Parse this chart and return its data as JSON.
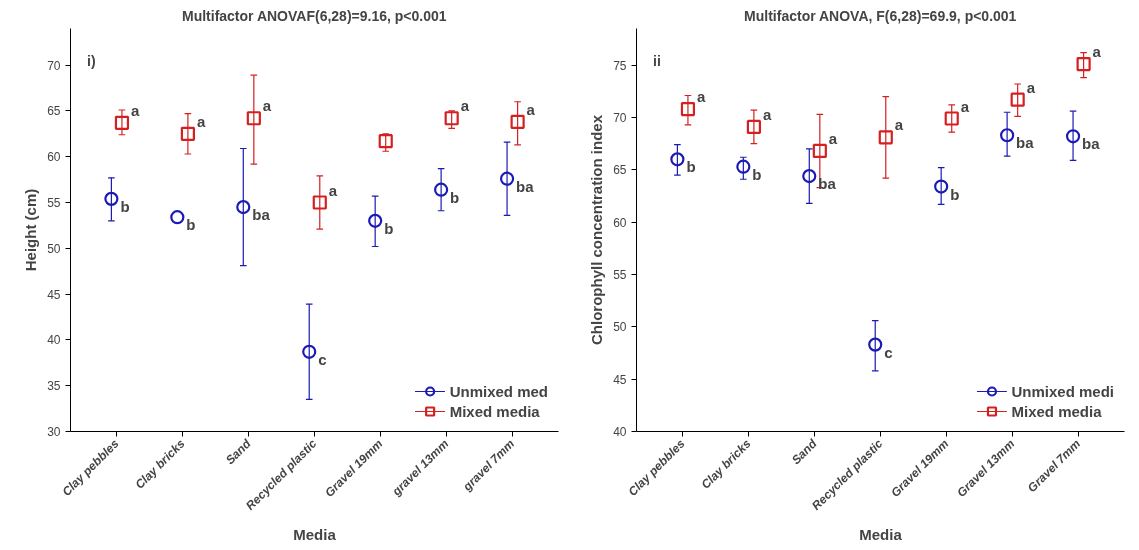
{
  "chart_data": [
    {
      "type": "scatter",
      "title": "Multifactor ANOVAF(6,28)=9.16, p<0.001",
      "xlabel": "Media",
      "ylabel": "Height (cm)",
      "categories": [
        "Clay pebbles",
        "Clay bricks",
        "Sand",
        "Recycled plastic",
        "Gravel 19mm",
        "gravel 13mm",
        "gravel 7mm"
      ],
      "series": [
        {
          "name": "Unmixed med",
          "color": "#1a1ab4",
          "marker": "circle",
          "values": [
            55.4,
            53.4,
            54.5,
            38.7,
            53.0,
            56.4,
            57.6
          ],
          "errors": [
            [
              53.0,
              57.7
            ],
            null,
            [
              48.1,
              60.9
            ],
            [
              33.5,
              43.9
            ],
            [
              50.2,
              55.7
            ],
            [
              54.1,
              58.7
            ],
            [
              53.6,
              61.6
            ]
          ]
        },
        {
          "name": "Mixed media",
          "color": "#d42020",
          "marker": "square",
          "values": [
            63.7,
            62.5,
            64.2,
            55.0,
            61.7,
            64.2,
            63.8
          ],
          "errors": [
            [
              62.4,
              65.1
            ],
            [
              60.3,
              64.7
            ],
            [
              59.2,
              68.9
            ],
            [
              52.1,
              57.9
            ],
            [
              60.6,
              62.5
            ],
            [
              63.1,
              65.0
            ],
            [
              61.3,
              66.0
            ]
          ]
        }
      ],
      "ylim": [
        30,
        74
      ],
      "yticks": [
        30,
        35,
        40,
        45,
        50,
        55,
        60,
        65,
        70
      ],
      "grid": false,
      "legend": "bottom right",
      "annotations": [
        "i)",
        {
          "text": "b",
          "x": "Clay pebbles",
          "y": 55.4
        },
        {
          "text": "b",
          "x": "Clay bricks",
          "y": 53.4
        },
        {
          "text": "ba",
          "x": "Sand",
          "y": 54.5
        },
        {
          "text": "c",
          "x": "Recycled plastic",
          "y": 38.7
        },
        {
          "text": "b",
          "x": "Gravel 19mm",
          "y": 53.0
        },
        {
          "text": "b",
          "x": "gravel 13mm",
          "y": 56.4
        },
        {
          "text": "ba",
          "x": "gravel 7mm",
          "y": 57.6
        },
        {
          "text": "a",
          "x": "Clay pebbles",
          "y": 63.7
        },
        {
          "text": "a",
          "x": "Clay bricks",
          "y": 62.5
        },
        {
          "text": "a",
          "x": "Sand",
          "y": 64.2
        },
        {
          "text": "a",
          "x": "Recycled plastic",
          "y": 55.0
        },
        {
          "text": "a",
          "x": "gravel 13mm",
          "y": 64.2
        },
        {
          "text": "a",
          "x": "gravel 7mm",
          "y": 63.8
        }
      ]
    },
    {
      "type": "scatter",
      "title": "Multifactor ANOVA, F(6,28)=69.9, p<0.001",
      "xlabel": "Media",
      "ylabel": "Chlorophyll concentration index",
      "categories": [
        "Clay pebbles",
        "Clay bricks",
        "Sand",
        "Recycled plastic",
        "Gravel 19mm",
        "Gravel 13mm",
        "Gravel 7mm"
      ],
      "series": [
        {
          "name": "Unmixed medi",
          "color": "#1a1ab4",
          "marker": "circle",
          "values": [
            66.0,
            65.3,
            64.4,
            48.3,
            63.4,
            68.3,
            68.2
          ],
          "errors": [
            [
              64.5,
              67.4
            ],
            [
              64.1,
              66.2
            ],
            [
              61.8,
              67.0
            ],
            [
              45.8,
              50.6
            ],
            [
              61.7,
              65.2
            ],
            [
              66.3,
              70.5
            ],
            [
              65.9,
              70.6
            ]
          ]
        },
        {
          "name": "Mixed media",
          "color": "#d42020",
          "marker": "square",
          "values": [
            70.8,
            69.1,
            66.8,
            68.1,
            69.9,
            71.7,
            75.1
          ],
          "errors": [
            [
              69.3,
              72.1
            ],
            [
              67.5,
              70.7
            ],
            [
              63.3,
              70.3
            ],
            [
              64.2,
              72.0
            ],
            [
              68.6,
              71.2
            ],
            [
              70.1,
              73.2
            ],
            [
              73.8,
              76.2
            ]
          ]
        }
      ],
      "ylim": [
        40,
        78.5
      ],
      "yticks": [
        40,
        45,
        50,
        55,
        60,
        65,
        70,
        75
      ],
      "grid": false,
      "legend": "bottom right",
      "annotations": [
        "ii",
        {
          "text": "b",
          "x": "Clay pebbles",
          "y": 66.0
        },
        {
          "text": "b",
          "x": "Clay bricks",
          "y": 65.3
        },
        {
          "text": "ba",
          "x": "Sand",
          "y": 64.4
        },
        {
          "text": "c",
          "x": "Recycled plastic",
          "y": 48.3
        },
        {
          "text": "b",
          "x": "Gravel 19mm",
          "y": 63.4
        },
        {
          "text": "ba",
          "x": "Gravel 13mm",
          "y": 68.3
        },
        {
          "text": "ba",
          "x": "Gravel 7mm",
          "y": 68.2
        },
        {
          "text": "a",
          "x": "Clay pebbles",
          "y": 70.8
        },
        {
          "text": "a",
          "x": "Clay bricks",
          "y": 69.1
        },
        {
          "text": "a",
          "x": "Sand",
          "y": 66.8
        },
        {
          "text": "a",
          "x": "Recycled plastic",
          "y": 68.1
        },
        {
          "text": "a",
          "x": "Gravel 19mm",
          "y": 69.9
        },
        {
          "text": "a",
          "x": "Gravel 13mm",
          "y": 71.7
        },
        {
          "text": "a",
          "x": "Gravel 7mm",
          "y": 75.1
        }
      ]
    }
  ]
}
